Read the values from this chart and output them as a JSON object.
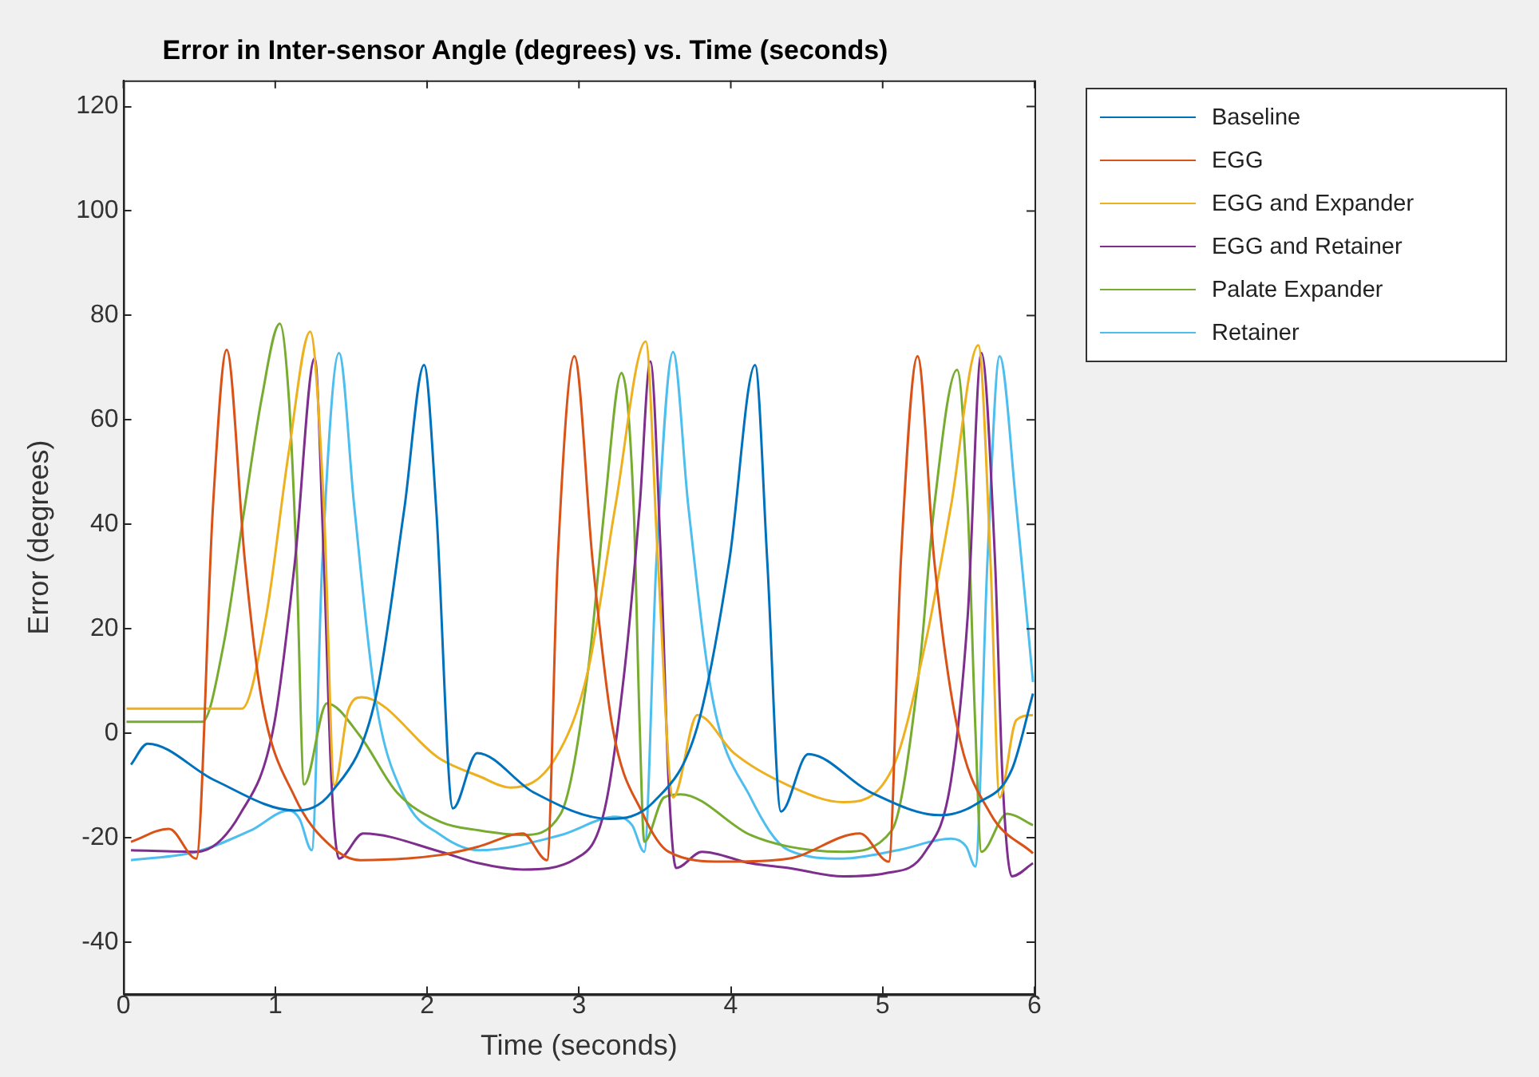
{
  "chart_data": {
    "type": "line",
    "title": "Error in Inter-sensor Angle (degrees) vs. Time (seconds)",
    "xlabel": "Time (seconds)",
    "ylabel": "Error (degrees)",
    "xlim": [
      0,
      6
    ],
    "xticks": [
      0,
      1,
      2,
      3,
      4,
      5,
      6
    ],
    "ylim": [
      -50,
      125
    ],
    "yticks": [
      -40,
      -20,
      0,
      20,
      40,
      60,
      80,
      100,
      120
    ],
    "grid": false,
    "legend": "top right",
    "marker": "none",
    "line_style": "solid",
    "series": [
      {
        "name": "Baseline",
        "color": "#0072bd",
        "x": [
          0.05,
          0.16,
          0.6,
          1.13,
          1.37,
          1.66,
          1.85,
          1.98,
          2.06,
          2.17,
          2.33,
          2.7,
          3.2,
          3.49,
          3.78,
          3.99,
          4.16,
          4.24,
          4.33,
          4.51,
          4.92,
          5.38,
          5.63,
          5.85,
          5.99
        ],
        "values": [
          -6,
          -2,
          -9,
          -14.8,
          -11.3,
          6.6,
          43,
          70.5,
          43,
          -14.4,
          -3.8,
          -11.3,
          -16.4,
          -13.2,
          1.3,
          33,
          70.5,
          33,
          -15,
          -4,
          -11.3,
          -15.7,
          -13.3,
          -7,
          7.6
        ]
      },
      {
        "name": "EGG",
        "color": "#d95319",
        "x": [
          0.05,
          0.3,
          0.48,
          0.59,
          0.68,
          0.8,
          0.91,
          1.13,
          1.37,
          1.56,
          2.09,
          2.34,
          2.63,
          2.79,
          2.86,
          2.97,
          3.09,
          3.22,
          3.42,
          3.59,
          3.95,
          4.38,
          4.85,
          5.04,
          5.12,
          5.23,
          5.34,
          5.49,
          5.71,
          5.99
        ],
        "values": [
          -20.8,
          -18.3,
          -24,
          43.5,
          73.4,
          33,
          6.6,
          -12.3,
          -21.7,
          -24.3,
          -23.3,
          -21.7,
          -19.2,
          -24.3,
          33,
          72.2,
          33,
          1.3,
          -15.4,
          -22.7,
          -24.6,
          -24,
          -19.2,
          -24.6,
          33,
          72.2,
          33,
          1.3,
          -15.4,
          -23
        ]
      },
      {
        "name": "EGG and Expander",
        "color": "#edb120",
        "x": [
          0.02,
          0.78,
          0.94,
          1.09,
          1.23,
          1.32,
          1.39,
          1.48,
          1.57,
          2.09,
          2.34,
          2.55,
          2.84,
          3.06,
          3.24,
          3.44,
          3.52,
          3.62,
          3.78,
          4.02,
          4.38,
          4.74,
          5.06,
          5.28,
          5.45,
          5.63,
          5.71,
          5.77,
          5.88,
          5.99
        ],
        "values": [
          4.7,
          4.7,
          22.4,
          54,
          76.9,
          43.5,
          -10,
          4.4,
          6.9,
          -5,
          -8.2,
          -10.4,
          -5,
          12,
          43.5,
          75,
          33,
          -12.3,
          3.5,
          -3.8,
          -10,
          -13.2,
          -7,
          17,
          43.5,
          74.3,
          33,
          -12.3,
          2.5,
          3.5
        ]
      },
      {
        "name": "EGG and Retainer",
        "color": "#7e2f8e",
        "x": [
          0.05,
          0.48,
          0.77,
          0.99,
          1.13,
          1.26,
          1.32,
          1.37,
          1.42,
          1.58,
          2.09,
          2.34,
          2.63,
          2.98,
          3.17,
          3.3,
          3.4,
          3.47,
          3.54,
          3.59,
          3.64,
          3.81,
          4.13,
          4.38,
          4.74,
          5.02,
          5.28,
          5.45,
          5.56,
          5.65,
          5.74,
          5.79,
          5.85,
          5.99
        ],
        "values": [
          -22.4,
          -22.7,
          -15.4,
          1.3,
          33,
          71.8,
          33,
          -9.1,
          -24,
          -19.2,
          -22.7,
          -24.9,
          -26.1,
          -24,
          -14.5,
          12,
          43.5,
          71.2,
          33,
          -9.1,
          -25.8,
          -22.7,
          -24.9,
          -25.8,
          -27.4,
          -26.8,
          -22.7,
          -9.1,
          22.4,
          72.8,
          33,
          -9.1,
          -27.4,
          -24.9
        ]
      },
      {
        "name": "Palate Expander",
        "color": "#77ac30",
        "x": [
          0.02,
          0.52,
          0.66,
          0.8,
          0.91,
          1.03,
          1.09,
          1.14,
          1.19,
          1.34,
          1.56,
          1.8,
          2.09,
          2.34,
          2.63,
          2.88,
          3.06,
          3.17,
          3.28,
          3.36,
          3.4,
          3.43,
          3.56,
          3.67,
          4.13,
          4.38,
          4.74,
          5.06,
          5.24,
          5.34,
          5.49,
          5.56,
          5.61,
          5.65,
          5.82,
          5.99
        ],
        "values": [
          2.2,
          2.2,
          17,
          43.5,
          64,
          78.4,
          64,
          33,
          -9.8,
          5.7,
          -0.6,
          -11.3,
          -17,
          -18.6,
          -19.5,
          -15.4,
          12,
          43.5,
          69,
          43.5,
          1.3,
          -20.8,
          -12.3,
          -11.7,
          -19.5,
          -21.7,
          -22.7,
          -18.6,
          12,
          43.5,
          69.6,
          43.5,
          1.3,
          -22.7,
          -15.4,
          -17.6
        ]
      },
      {
        "name": "Retainer",
        "color": "#4dbeee",
        "x": [
          0.05,
          0.48,
          0.84,
          1.09,
          1.16,
          1.24,
          1.31,
          1.42,
          1.52,
          1.66,
          1.85,
          2.09,
          2.34,
          2.88,
          3.24,
          3.35,
          3.43,
          3.51,
          3.62,
          3.72,
          3.88,
          4.13,
          4.38,
          4.74,
          5.1,
          5.45,
          5.55,
          5.61,
          5.69,
          5.77,
          5.88,
          5.99
        ],
        "values": [
          -24.3,
          -22.7,
          -18.6,
          -14.8,
          -16.4,
          -22.4,
          33,
          72.8,
          43.5,
          6.6,
          -12.3,
          -19.5,
          -22.4,
          -19.5,
          -16,
          -17.6,
          -22.7,
          33,
          73,
          43.5,
          6.6,
          -12.3,
          -22.4,
          -24,
          -22.4,
          -20.2,
          -21.7,
          -25.5,
          33,
          72.2,
          43.5,
          9.8
        ]
      }
    ]
  }
}
